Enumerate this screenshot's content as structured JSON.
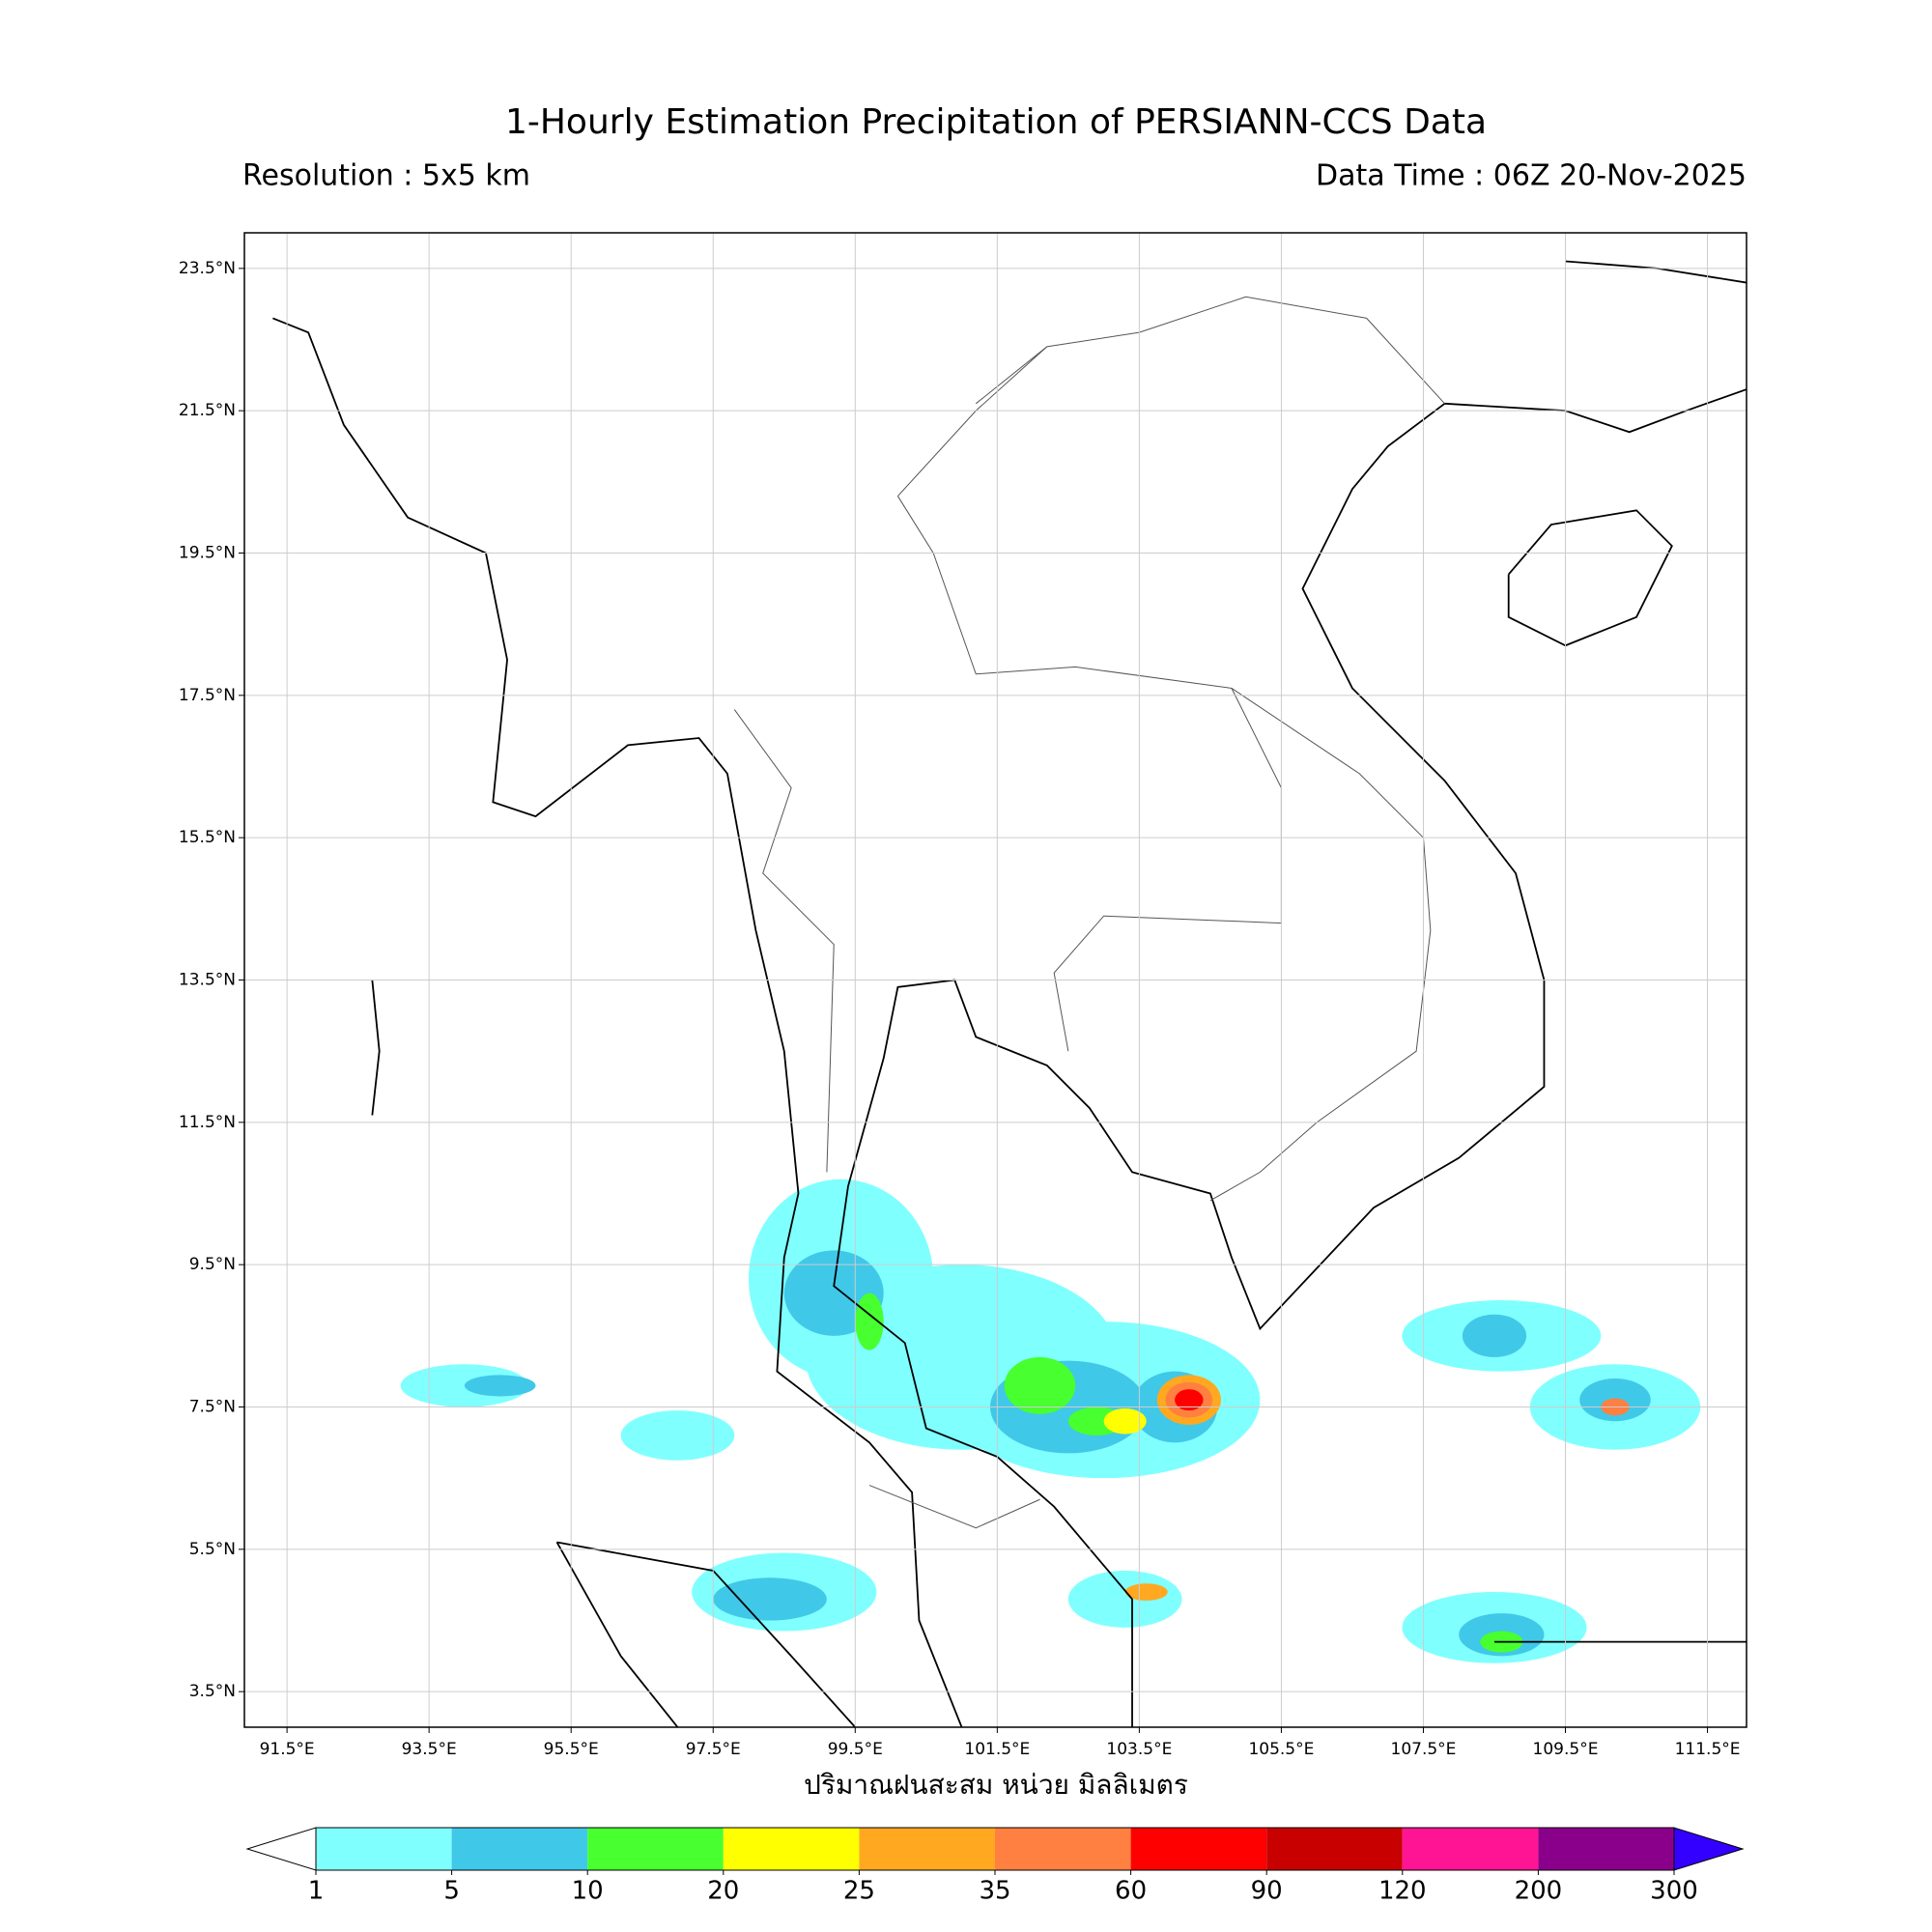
{
  "title": "1-Hourly Estimation Precipitation of PERSIANN-CCS Data",
  "subtitle_left": "Resolution : 5x5 km",
  "subtitle_right": "Data Time : 06Z 20-Nov-2025",
  "map": {
    "lonlim": [
      90.9,
      112.05
    ],
    "latlim": [
      3.0,
      24.0
    ],
    "grid": true,
    "lonticks": [
      {
        "value": 91.5,
        "label": "91.5°E"
      },
      {
        "value": 93.5,
        "label": "93.5°E"
      },
      {
        "value": 95.5,
        "label": "95.5°E"
      },
      {
        "value": 97.5,
        "label": "97.5°E"
      },
      {
        "value": 99.5,
        "label": "99.5°E"
      },
      {
        "value": 101.5,
        "label": "101.5°E"
      },
      {
        "value": 103.5,
        "label": "103.5°E"
      },
      {
        "value": 105.5,
        "label": "105.5°E"
      },
      {
        "value": 107.5,
        "label": "107.5°E"
      },
      {
        "value": 109.5,
        "label": "109.5°E"
      },
      {
        "value": 111.5,
        "label": "111.5°E"
      }
    ],
    "latticks": [
      {
        "value": 3.5,
        "label": "3.5°N"
      },
      {
        "value": 5.5,
        "label": "5.5°N"
      },
      {
        "value": 7.5,
        "label": "7.5°N"
      },
      {
        "value": 9.5,
        "label": "9.5°N"
      },
      {
        "value": 11.5,
        "label": "11.5°N"
      },
      {
        "value": 13.5,
        "label": "13.5°N"
      },
      {
        "value": 15.5,
        "label": "15.5°N"
      },
      {
        "value": 17.5,
        "label": "17.5°N"
      },
      {
        "value": 19.5,
        "label": "19.5°N"
      },
      {
        "value": 21.5,
        "label": "21.5°N"
      },
      {
        "value": 23.5,
        "label": "23.5°N"
      }
    ]
  },
  "colorbar": {
    "label": "ปริมาณฝนสะสม หน่วย มิลลิเมตร",
    "bounds": [
      1,
      5,
      10,
      20,
      25,
      35,
      60,
      90,
      120,
      200,
      300
    ],
    "colors": [
      "#80ffff",
      "#40c8e8",
      "#48ff30",
      "#ffff00",
      "#ffa820",
      "#ff8040",
      "#ff0000",
      "#c80000",
      "#ff1493",
      "#8b008b"
    ],
    "under_color": "#ffffff",
    "over_color": "#3300ff"
  }
}
